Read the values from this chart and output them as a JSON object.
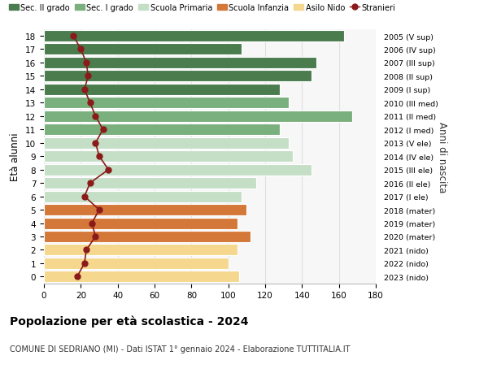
{
  "ages": [
    0,
    1,
    2,
    3,
    4,
    5,
    6,
    7,
    8,
    9,
    10,
    11,
    12,
    13,
    14,
    15,
    16,
    17,
    18
  ],
  "values": [
    106,
    100,
    105,
    112,
    105,
    110,
    107,
    115,
    145,
    135,
    133,
    128,
    167,
    133,
    128,
    145,
    148,
    107,
    163
  ],
  "stranieri": [
    18,
    22,
    23,
    28,
    26,
    30,
    22,
    25,
    35,
    30,
    28,
    32,
    28,
    25,
    22,
    24,
    23,
    20,
    16
  ],
  "categories": {
    "Sec. II grado": {
      "ages": [
        14,
        15,
        16,
        17,
        18
      ],
      "color": "#4a7c4e"
    },
    "Sec. I grado": {
      "ages": [
        11,
        12,
        13
      ],
      "color": "#7ab07e"
    },
    "Scuola Primaria": {
      "ages": [
        6,
        7,
        8,
        9,
        10
      ],
      "color": "#c5dfc6"
    },
    "Scuola Infanzia": {
      "ages": [
        3,
        4,
        5
      ],
      "color": "#d4783a"
    },
    "Asilo Nido": {
      "ages": [
        0,
        1,
        2
      ],
      "color": "#f5d78e"
    }
  },
  "right_labels": [
    "2023 (nido)",
    "2022 (nido)",
    "2021 (nido)",
    "2020 (mater)",
    "2019 (mater)",
    "2018 (mater)",
    "2017 (I ele)",
    "2016 (II ele)",
    "2015 (III ele)",
    "2014 (IV ele)",
    "2013 (V ele)",
    "2012 (I med)",
    "2011 (II med)",
    "2010 (III med)",
    "2009 (I sup)",
    "2008 (II sup)",
    "2007 (III sup)",
    "2006 (IV sup)",
    "2005 (V sup)"
  ],
  "ylabel": "Età alunni",
  "right_ylabel": "Anni di nascita",
  "title": "Popolazione per età scolastica - 2024",
  "subtitle": "COMUNE DI SEDRIANO (MI) - Dati ISTAT 1° gennaio 2024 - Elaborazione TUTTITALIA.IT",
  "xlim": [
    0,
    180
  ],
  "xticks": [
    0,
    20,
    40,
    60,
    80,
    100,
    120,
    140,
    160,
    180
  ],
  "background_color": "#ffffff",
  "plot_bg_color": "#f7f7f7",
  "grid_color": "#e0e0e0",
  "stranieri_color": "#8b1a1a",
  "stranieri_line_color": "#8b1a1a"
}
